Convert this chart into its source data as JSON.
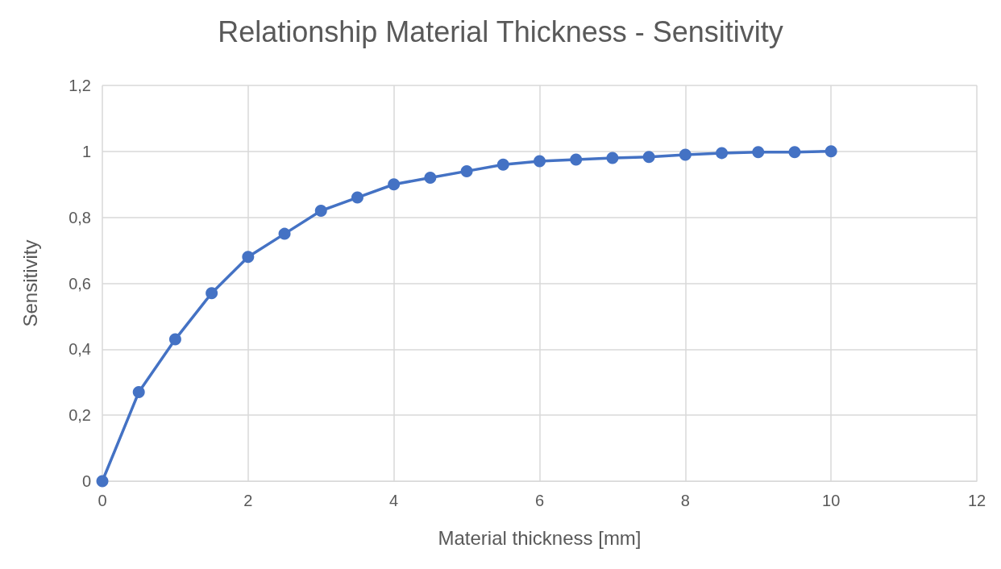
{
  "chart_data": {
    "type": "line",
    "title": "Relationship Material Thickness - Sensitivity",
    "xlabel": "Material thickness [mm]",
    "ylabel": "Sensitivity",
    "x": [
      0,
      0.5,
      1,
      1.5,
      2,
      2.5,
      3,
      3.5,
      4,
      4.5,
      5,
      5.5,
      6,
      6.5,
      7,
      7.5,
      8,
      8.5,
      9,
      9.5,
      10
    ],
    "series": [
      {
        "color": "#4472c4",
        "values": [
          0,
          0.27,
          0.43,
          0.57,
          0.68,
          0.75,
          0.82,
          0.86,
          0.9,
          0.92,
          0.94,
          0.96,
          0.97,
          0.975,
          0.98,
          0.983,
          0.99,
          0.995,
          0.998,
          0.998,
          1.0
        ]
      }
    ],
    "xlim": [
      0,
      12
    ],
    "xticks": [
      0,
      2,
      4,
      6,
      8,
      10,
      12
    ],
    "ylim": [
      0,
      1.2
    ],
    "yticks": [
      0,
      {
        "value": 0.2,
        "label": "0,2"
      },
      {
        "value": 0.4,
        "label": "0,4"
      },
      {
        "value": 0.6,
        "label": "0,6"
      },
      {
        "value": 0.8,
        "label": "0,8"
      },
      1,
      {
        "value": 1.2,
        "label": "1,2"
      }
    ],
    "grid": true,
    "marker": "circle",
    "line_style": "solid"
  }
}
